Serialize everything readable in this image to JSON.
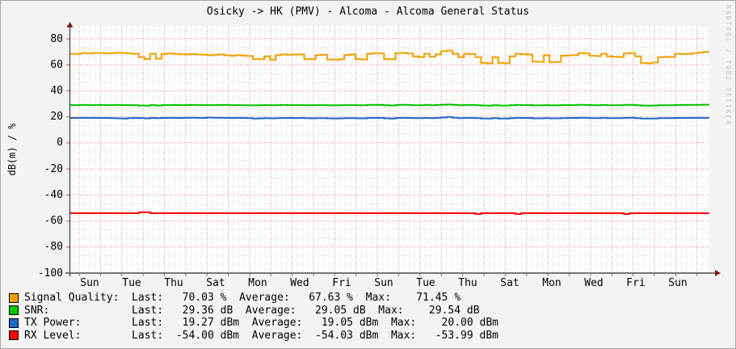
{
  "title": "Osicky -> HK (PMV) - Alcoma - Alcoma General Status",
  "watermark": "RRDTOOL / TOBI OETIKER",
  "y_axis_label": "dB(m) / %",
  "colors": {
    "background": "#f3f3f3",
    "plot_background": "#ffffff",
    "grid_major": "#f08080",
    "grid_minor": "#d8d8d8",
    "axis": "#4d4d4d",
    "arrow": "#7a2015",
    "tick": "#c06060",
    "watermark": "#c0c0c0"
  },
  "chart_data": {
    "type": "line",
    "title": "Osicky -> HK (PMV) - Alcoma - Alcoma General Status",
    "xlabel": "",
    "ylabel": "dB(m) / %",
    "ylim": [
      -100,
      90
    ],
    "grid": true,
    "legend_position": "bottom-left",
    "y_tick_labels": [
      "80",
      "60",
      "40",
      "20",
      "0",
      "-20",
      "-40",
      "-60",
      "-80",
      "-100"
    ],
    "x_tick_labels": [
      "Sun",
      "Tue",
      "Thu",
      "Sat",
      "Mon",
      "Wed",
      "Fri",
      "Sun",
      "Tue",
      "Thu",
      "Sat",
      "Mon",
      "Wed",
      "Fri",
      "Sun"
    ],
    "series": [
      {
        "name": "Signal Quality",
        "unit": "%",
        "color": "#f0a000",
        "last": 70.03,
        "average": 67.63,
        "max": 71.45,
        "values": [
          68.5,
          68.5,
          69.0,
          68.8,
          69.2,
          69.0,
          68.8,
          69.0,
          69.3,
          69.0,
          68.8,
          68.5,
          66.0,
          64.5,
          68.5,
          64.8,
          68.5,
          68.8,
          68.5,
          68.2,
          68.0,
          68.3,
          68.0,
          67.8,
          67.5,
          67.8,
          68.0,
          67.5,
          67.0,
          67.5,
          67.2,
          66.8,
          64.5,
          64.3,
          66.5,
          64.0,
          67.5,
          68.0,
          67.8,
          68.0,
          68.0,
          64.5,
          64.3,
          67.5,
          67.8,
          64.2,
          64.0,
          64.3,
          67.5,
          68.0,
          64.5,
          64.2,
          68.5,
          69.0,
          68.8,
          64.5,
          64.3,
          69.0,
          69.2,
          68.8,
          66.5,
          66.0,
          68.5,
          66.2,
          68.0,
          70.5,
          71.0,
          68.5,
          66.0,
          68.5,
          68.3,
          66.0,
          61.5,
          61.2,
          66.0,
          61.5,
          61.3,
          66.5,
          68.5,
          68.2,
          68.0,
          62.5,
          62.3,
          67.5,
          62.0,
          62.3,
          67.0,
          67.3,
          67.5,
          69.0,
          68.8,
          67.0,
          66.8,
          68.5,
          66.5,
          66.3,
          66.0,
          68.8,
          69.0,
          66.5,
          61.5,
          61.2,
          61.8,
          66.0,
          66.3,
          66.0,
          68.5,
          68.3,
          68.5,
          69.0,
          69.5,
          70.0
        ]
      },
      {
        "name": "SNR",
        "unit": "dB",
        "color": "#00c400",
        "last": 29.36,
        "average": 29.05,
        "max": 29.54,
        "values": [
          29.1,
          29.1,
          29.2,
          29.1,
          29.1,
          29.2,
          29.1,
          29.1,
          29.2,
          29.1,
          29.1,
          29.0,
          28.8,
          28.7,
          29.1,
          28.8,
          29.1,
          29.1,
          29.2,
          29.1,
          29.1,
          29.2,
          29.1,
          29.1,
          29.1,
          29.1,
          29.2,
          29.2,
          29.0,
          29.1,
          29.0,
          28.9,
          28.9,
          29.0,
          29.1,
          29.0,
          29.1,
          29.2,
          29.1,
          29.1,
          29.1,
          29.0,
          29.0,
          29.1,
          29.1,
          28.9,
          28.9,
          29.0,
          29.1,
          29.1,
          29.0,
          29.0,
          29.2,
          29.3,
          29.2,
          29.0,
          28.8,
          29.2,
          29.3,
          29.2,
          29.0,
          29.0,
          29.2,
          29.0,
          29.2,
          29.4,
          29.5,
          29.2,
          29.0,
          29.2,
          29.2,
          29.0,
          28.8,
          28.7,
          29.0,
          28.8,
          28.8,
          29.0,
          29.2,
          29.1,
          29.1,
          28.9,
          28.9,
          29.1,
          28.9,
          28.9,
          29.1,
          29.1,
          29.1,
          29.3,
          29.2,
          29.1,
          29.0,
          29.2,
          29.0,
          29.0,
          29.0,
          29.2,
          29.3,
          29.0,
          28.8,
          28.7,
          28.8,
          29.0,
          29.0,
          29.0,
          29.2,
          29.2,
          29.2,
          29.3,
          29.3,
          29.4
        ]
      },
      {
        "name": "TX Power",
        "unit": "dBm",
        "color": "#1e68c8",
        "last": 19.27,
        "average": 19.05,
        "max": 20.0,
        "values": [
          19.2,
          19.2,
          19.3,
          19.2,
          19.3,
          19.2,
          19.2,
          19.0,
          18.9,
          18.8,
          19.0,
          19.2,
          19.0,
          18.9,
          19.2,
          19.0,
          19.2,
          19.3,
          19.2,
          19.2,
          19.3,
          19.4,
          19.3,
          19.2,
          19.5,
          19.4,
          19.3,
          19.3,
          19.2,
          19.3,
          19.2,
          19.0,
          18.8,
          18.9,
          19.0,
          18.9,
          19.1,
          19.2,
          19.2,
          19.1,
          19.2,
          19.0,
          18.9,
          19.1,
          19.1,
          18.9,
          18.8,
          18.9,
          19.1,
          19.1,
          18.9,
          18.9,
          19.2,
          19.3,
          19.2,
          18.9,
          18.8,
          19.2,
          19.3,
          19.2,
          19.0,
          19.0,
          19.2,
          19.0,
          19.3,
          19.6,
          20.0,
          19.4,
          19.1,
          19.3,
          19.2,
          19.0,
          18.7,
          18.7,
          19.0,
          18.8,
          18.8,
          19.1,
          19.3,
          19.2,
          19.2,
          18.9,
          18.9,
          19.1,
          18.9,
          18.9,
          19.1,
          19.2,
          19.2,
          19.4,
          19.3,
          19.1,
          19.1,
          19.3,
          19.1,
          19.0,
          19.0,
          19.3,
          19.4,
          19.1,
          18.7,
          18.7,
          18.8,
          19.0,
          19.0,
          19.0,
          19.2,
          19.2,
          19.2,
          19.3,
          19.3,
          19.3
        ]
      },
      {
        "name": "RX Level",
        "unit": "dBm",
        "color": "#ff0000",
        "last": -54.0,
        "average": -54.03,
        "max": -53.99,
        "values": [
          -54.0,
          -54.0,
          -54.0,
          -54.0,
          -54.0,
          -54.0,
          -54.0,
          -54.0,
          -54.0,
          -54.0,
          -54.0,
          -54.0,
          -53.3,
          -53.3,
          -54.0,
          -54.0,
          -54.0,
          -54.0,
          -54.0,
          -54.0,
          -54.0,
          -54.0,
          -54.0,
          -54.0,
          -54.0,
          -54.0,
          -54.0,
          -54.0,
          -54.0,
          -54.0,
          -54.0,
          -54.0,
          -54.0,
          -54.0,
          -54.0,
          -54.0,
          -54.0,
          -54.0,
          -54.0,
          -54.0,
          -54.0,
          -54.0,
          -54.0,
          -54.0,
          -54.0,
          -54.0,
          -54.0,
          -54.0,
          -54.0,
          -54.0,
          -54.0,
          -54.0,
          -54.0,
          -54.0,
          -54.0,
          -54.0,
          -54.0,
          -54.0,
          -54.0,
          -54.0,
          -54.0,
          -54.0,
          -54.0,
          -54.0,
          -54.0,
          -54.0,
          -54.0,
          -54.0,
          -54.0,
          -54.0,
          -54.0,
          -54.6,
          -54.0,
          -54.0,
          -54.0,
          -54.0,
          -54.0,
          -54.0,
          -54.6,
          -54.0,
          -54.0,
          -54.0,
          -54.0,
          -54.0,
          -54.0,
          -54.0,
          -54.0,
          -54.0,
          -54.0,
          -54.0,
          -54.0,
          -54.0,
          -54.0,
          -54.0,
          -54.0,
          -54.0,
          -54.0,
          -54.6,
          -54.0,
          -54.0,
          -54.0,
          -54.0,
          -54.0,
          -54.0,
          -54.0,
          -54.0,
          -54.0,
          -54.0,
          -54.0,
          -54.0,
          -54.0,
          -54.0
        ]
      }
    ],
    "legend_rows": [
      {
        "series": "Signal Quality",
        "text": "Signal Quality:  Last:   70.03 %  Average:   67.63 %  Max:    71.45 %"
      },
      {
        "series": "SNR",
        "text": "SNR:             Last:   29.36 dB  Average:   29.05 dB  Max:    29.54 dB"
      },
      {
        "series": "TX Power",
        "text": "TX Power:        Last:   19.27 dBm  Average:   19.05 dBm  Max:    20.00 dBm"
      },
      {
        "series": "RX Level",
        "text": "RX Level:        Last:  -54.00 dBm  Average:  -54.03 dBm  Max:   -53.99 dBm"
      }
    ]
  }
}
